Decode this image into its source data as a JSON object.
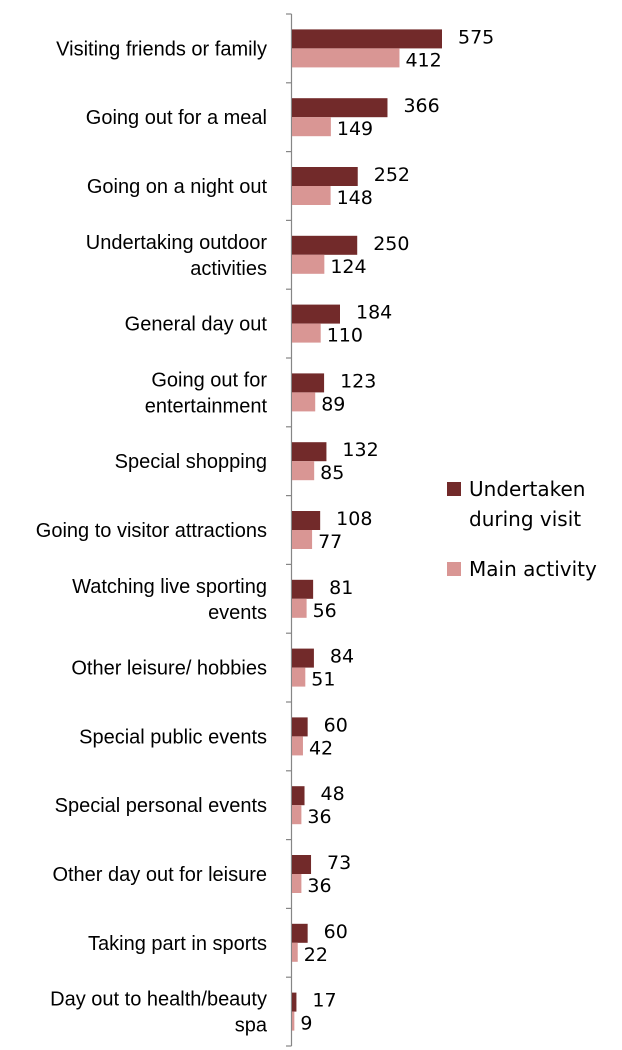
{
  "chart_data": {
    "type": "bar",
    "orientation": "horizontal",
    "categories": [
      [
        "Visiting friends or family"
      ],
      [
        "Going out for a meal"
      ],
      [
        "Going on a night out"
      ],
      [
        "Undertaking outdoor",
        "activities"
      ],
      [
        "General day out"
      ],
      [
        "Going out for",
        "entertainment"
      ],
      [
        "Special shopping"
      ],
      [
        "Going to visitor attractions"
      ],
      [
        "Watching live sporting",
        "events"
      ],
      [
        "Other leisure/ hobbies"
      ],
      [
        "Special public events"
      ],
      [
        "Special personal events"
      ],
      [
        "Other day out for leisure"
      ],
      [
        "Taking part in sports"
      ],
      [
        "Day out to health/beauty",
        "spa"
      ]
    ],
    "series": [
      {
        "name": "Undertaken during visit",
        "legend_lines": [
          "Undertaken",
          "during visit"
        ],
        "color": "#722A2A",
        "values": [
          575,
          366,
          252,
          250,
          184,
          123,
          132,
          108,
          81,
          84,
          60,
          48,
          73,
          60,
          17
        ]
      },
      {
        "name": "Main activity",
        "legend_lines": [
          "Main activity"
        ],
        "color": "#D99694",
        "values": [
          412,
          149,
          148,
          124,
          110,
          89,
          85,
          77,
          56,
          51,
          42,
          36,
          36,
          22,
          9
        ]
      }
    ],
    "xlim": [
      0,
      575
    ],
    "grid": false,
    "legend_position": "right"
  }
}
